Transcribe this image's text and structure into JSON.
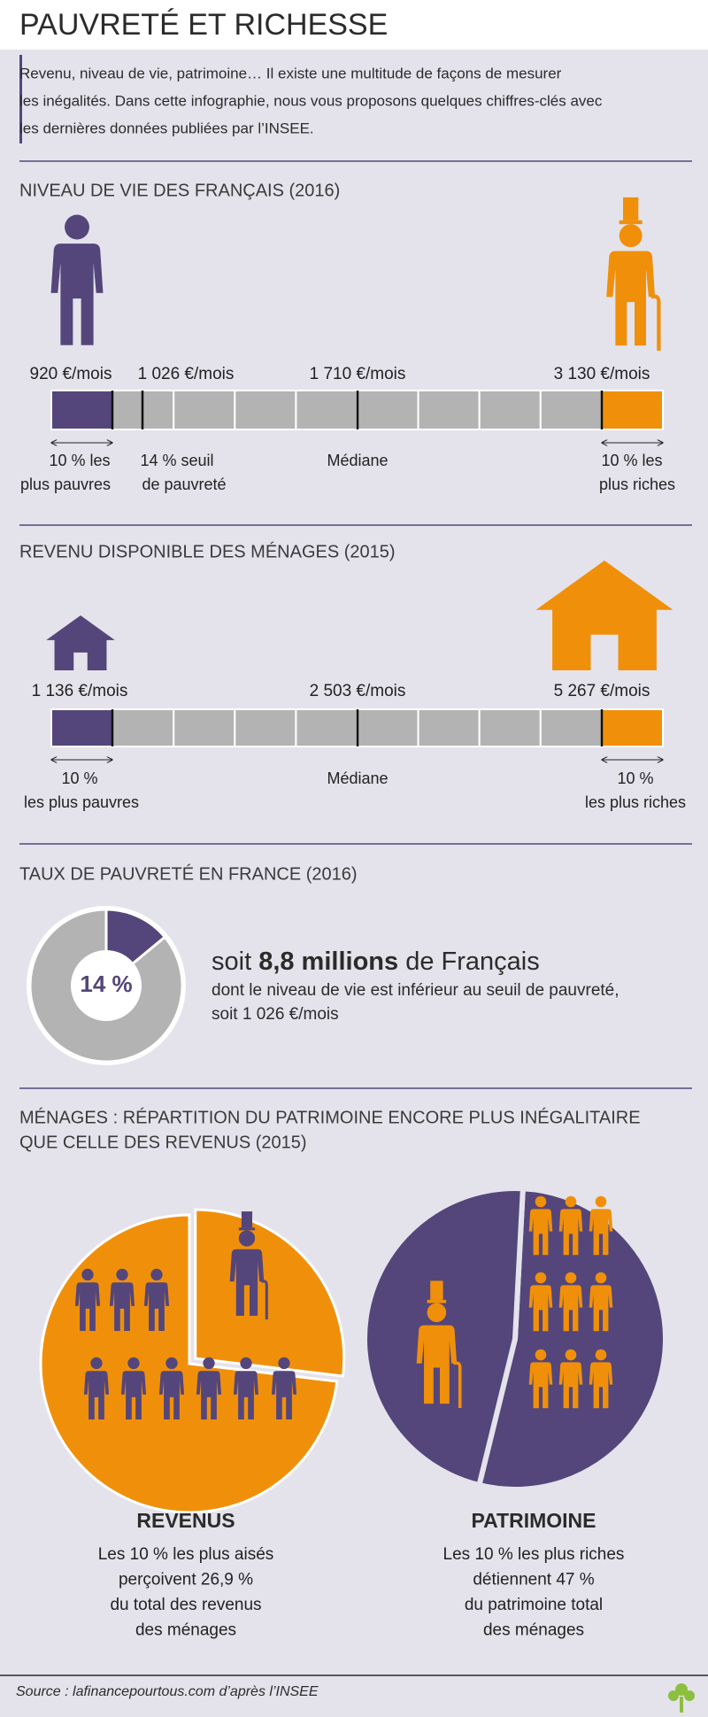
{
  "title": "PAUVRETÉ ET RICHESSE",
  "intro": [
    "Revenu, niveau de vie, patrimoine… Il existe une multitude de façons de mesurer",
    "les inégalités. Dans cette infographie, nous vous proposons quelques chiffres-clés avec",
    "les dernières données publiées par l’INSEE."
  ],
  "niveau_de_vie": {
    "heading": "NIVEAU DE VIE DES FRANÇAIS (2016)",
    "amounts": [
      "920 €/mois",
      "1 026 €/mois",
      "1 710 €/mois",
      "3 130 €/mois"
    ],
    "labels": [
      [
        "10 % les",
        "plus pauvres"
      ],
      [
        "14 % seuil",
        "de pauvreté"
      ],
      [
        "Médiane"
      ],
      [
        "10 % les",
        "plus riches"
      ]
    ]
  },
  "revenu_disponible": {
    "heading": "REVENU DISPONIBLE DES MÉNAGES (2015)",
    "amounts": [
      "1 136 €/mois",
      "2 503 €/mois",
      "5 267 €/mois"
    ],
    "labels": [
      [
        "10 %",
        "les plus pauvres"
      ],
      [
        "Médiane"
      ],
      [
        "10 %",
        "les plus riches"
      ]
    ]
  },
  "taux_pauvrete": {
    "heading": "TAUX DE PAUVRETÉ EN FRANCE (2016)",
    "rate": {
      "value": 14,
      "label": "14 %"
    },
    "line1": [
      "soit ",
      "8,8 millions",
      " de Français"
    ],
    "line2": "dont le niveau de vie est inférieur au seuil de pauvreté,",
    "line3": "soit 1 026 €/mois"
  },
  "patrimoine": {
    "heading": [
      "MÉNAGES : RÉPARTITION DU PATRIMOINE ENCORE PLUS INÉGALITAIRE",
      "QUE CELLE DES REVENUS (2015)"
    ],
    "revenus": {
      "title": "REVENUS",
      "share": 26.9,
      "lines": [
        "Les 10 % les plus aisés",
        "perçoivent 26,9 %",
        "du total des revenus",
        "des ménages"
      ]
    },
    "patrimoine": {
      "title": "PATRIMOINE",
      "share": 47,
      "lines": [
        "Les 10 % les plus riches",
        "détiennent 47 %",
        "du patrimoine total",
        "des ménages"
      ]
    }
  },
  "source": "Source : lafinancepourtous.com d’après l’INSEE"
}
